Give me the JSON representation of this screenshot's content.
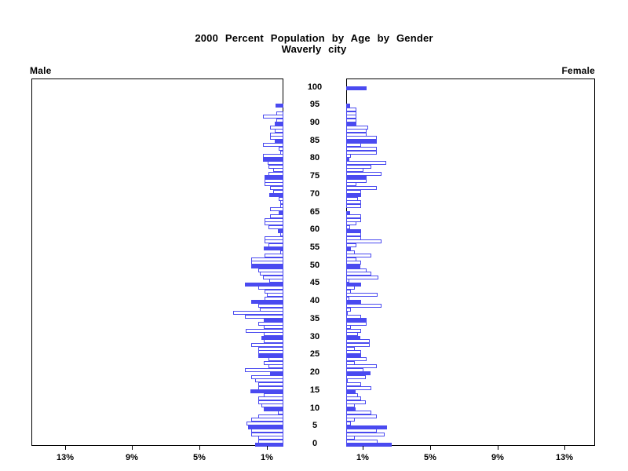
{
  "title": {
    "line1": "2000 Percent Population by Age by Gender",
    "line2": "Waverly city"
  },
  "panels": {
    "male_label": "Male",
    "female_label": "Female"
  },
  "colors": {
    "bar_blue": "#4a4af0",
    "axis_black": "#000000",
    "background": "#ffffff"
  },
  "chart_data": {
    "type": "bar",
    "subtype": "population-pyramid",
    "title": "2000 Percent Population by Age by Gender",
    "subtitle": "Waverly city",
    "orientation": "horizontal, male bars extend left, female bars extend right",
    "age_axis": {
      "min": 0,
      "max": 100,
      "tick_step": 5,
      "tick_labels": [
        "0",
        "5",
        "10",
        "15",
        "20",
        "25",
        "30",
        "35",
        "40",
        "45",
        "50",
        "55",
        "60",
        "65",
        "70",
        "75",
        "80",
        "85",
        "90",
        "95",
        "100"
      ]
    },
    "pct_axis": {
      "tick_values": [
        1,
        5,
        9,
        13
      ],
      "male_tick_labels": [
        "13%",
        "9%",
        "5%",
        "1%"
      ],
      "female_tick_labels": [
        "1%",
        "5%",
        "9%",
        "13%"
      ],
      "max": 15,
      "unit": "% of population"
    },
    "style_note": "bars at ages divisible by 5 are solid blue; all other ages are white with blue outline",
    "series": [
      {
        "name": "Male",
        "side": "left",
        "ages_start": 0,
        "values": [
          1.7,
          1.5,
          1.5,
          1.9,
          1.9,
          2.1,
          2.2,
          1.9,
          1.5,
          0.35,
          1.15,
          1.3,
          1.5,
          1.5,
          1.15,
          1.95,
          1.5,
          1.5,
          1.7,
          1.9,
          0.8,
          2.3,
          0.9,
          1.15,
          0.9,
          1.5,
          1.5,
          1.5,
          1.9,
          1.15,
          1.3,
          1.15,
          2.25,
          1.15,
          1.5,
          1.15,
          2.3,
          3.0,
          1.4,
          1.5,
          1.9,
          1.1,
          1.0,
          1.1,
          1.5,
          2.3,
          0.85,
          1.2,
          1.4,
          1.5,
          1.9,
          1.9,
          1.9,
          1.1,
          0.2,
          1.15,
          0.9,
          1.1,
          1.1,
          0.2,
          0.35,
          0.9,
          1.1,
          1.1,
          0.8,
          0.3,
          0.8,
          0.2,
          0.2,
          0.3,
          0.85,
          0.6,
          0.8,
          1.1,
          1.1,
          1.1,
          0.9,
          0.6,
          0.9,
          0.95,
          1.2,
          1.2,
          0.2,
          0.3,
          1.2,
          0.5,
          0.8,
          0.8,
          0.5,
          0.8,
          0.5,
          0.4,
          1.2,
          0.4,
          0,
          0.45,
          0,
          0,
          0,
          0,
          0
        ]
      },
      {
        "name": "Female",
        "side": "right",
        "ages_start": 0,
        "values": [
          2.7,
          1.85,
          0.5,
          2.3,
          1.8,
          2.45,
          0.3,
          0.5,
          1.8,
          1.5,
          0.55,
          0.5,
          1.15,
          0.9,
          0.7,
          0.55,
          1.5,
          0.9,
          0.05,
          1.15,
          1.45,
          1.05,
          1.8,
          0.5,
          1.2,
          0.9,
          0.9,
          0.5,
          1.4,
          1.4,
          0.85,
          0.7,
          0.9,
          0.3,
          1.2,
          1.2,
          0.9,
          0.05,
          0.3,
          2.1,
          0.9,
          0.2,
          1.85,
          0.3,
          0.5,
          0.9,
          0.2,
          1.9,
          1.5,
          1.2,
          0.85,
          0.9,
          0.6,
          1.5,
          0.5,
          0.3,
          0.6,
          2.1,
          0.9,
          0.9,
          0.9,
          0.25,
          0.6,
          0.9,
          0.9,
          0.25,
          0,
          0.9,
          0.9,
          0.7,
          0.9,
          0.9,
          1.8,
          0.6,
          1.2,
          1.2,
          2.1,
          1.05,
          1.5,
          2.4,
          0.2,
          0.3,
          1.8,
          1.8,
          0.9,
          1.8,
          1.8,
          1.2,
          1.2,
          1.3,
          0.6,
          0.6,
          0.6,
          0.6,
          0.6,
          0.25,
          0,
          0,
          0,
          0,
          1.2
        ]
      }
    ]
  }
}
